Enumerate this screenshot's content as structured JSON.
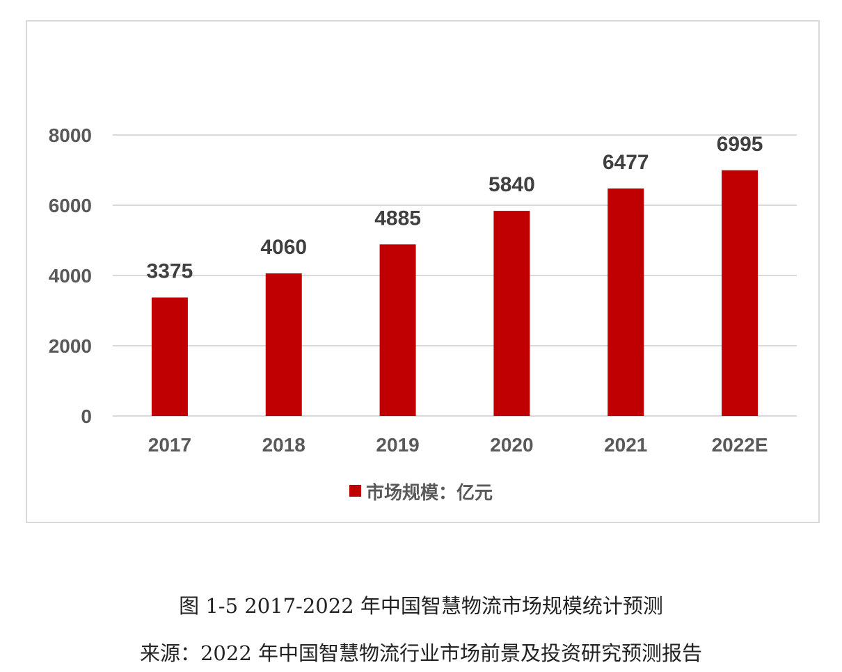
{
  "chart_data": {
    "type": "bar",
    "categories": [
      "2017",
      "2018",
      "2019",
      "2020",
      "2021",
      "2022E"
    ],
    "series": [
      {
        "name": "市场规模：亿元",
        "values": [
          3375,
          4060,
          4885,
          5840,
          6477,
          6995
        ]
      }
    ],
    "yticks": [
      "0",
      "2000",
      "4000",
      "6000",
      "8000"
    ],
    "ylim": [
      0,
      8000
    ],
    "grid": true,
    "legend_position": "bottom-center",
    "bar_color": "#c00000",
    "grid_color": "#d9d9d9",
    "title": "",
    "xlabel": "",
    "ylabel": ""
  },
  "caption": {
    "title": "图 1-5 2017-2022 年中国智慧物流市场规模统计预测",
    "source": "来源：2022 年中国智慧物流行业市场前景及投资研究预测报告"
  }
}
